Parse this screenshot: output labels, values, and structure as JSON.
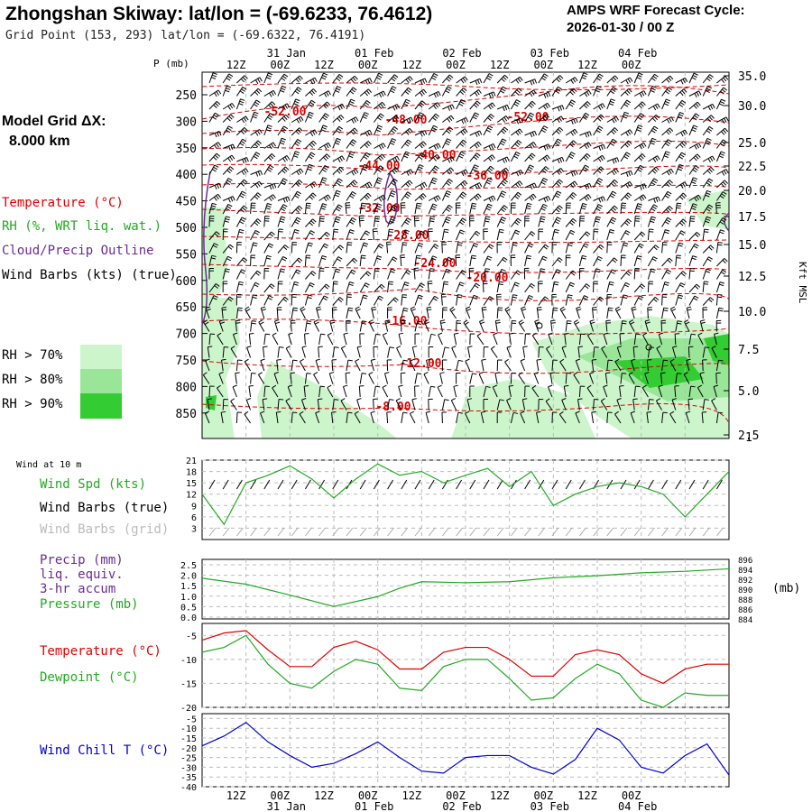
{
  "header": {
    "title": "Zhongshan Skiway:  lat/lon = (-69.6233, 76.4612)",
    "grid_point": "Grid Point (153, 293) lat/lon = (-69.6322, 76.4191)",
    "cycle_label": "AMPS WRF Forecast Cycle:",
    "cycle_value": "2026-01-30 / 00  Z"
  },
  "left_legend": {
    "model_grid_label": "Model Grid ΔX:",
    "model_grid_value": "8.000 km",
    "temperature": "Temperature (°C)",
    "rh": "RH (%, WRT liq. wat.)",
    "cloud": "Cloud/Precip Outline",
    "wind_barbs": "Wind Barbs (kts) (true)",
    "rh70": "RH > 70%",
    "rh80": "RH > 80%",
    "rh90": "RH > 90%",
    "wind_10m": "Wind at 10 m",
    "wind_spd": "Wind Spd (kts)",
    "wind_barbs_true": "Wind Barbs (true)",
    "wind_barbs_grid": "Wind Barbs (grid)",
    "precip1": "Precip (mm)",
    "precip2": "liq. equiv.",
    "precip3": "3-hr accum",
    "pressure": "Pressure (mb)",
    "temp2": "Temperature (°C)",
    "dewpoint": "Dewpoint (°C)",
    "windchill": "Wind Chill T (°C)"
  },
  "colors": {
    "temperature": "#dd0000",
    "rh_green_text": "#22aa22",
    "cloud": "#6a2c91",
    "rh70": "#ccf5cc",
    "rh80": "#99e699",
    "rh90": "#33cc33",
    "wind_chill": "#0000cc",
    "grid_barbs": "#aaaaaa"
  },
  "chart_data": [
    {
      "type": "heatmap",
      "title": "Vertical time-section",
      "ylabel": "P (mb)",
      "y2label": "Kft MSL",
      "p_ticks": [
        "250",
        "300",
        "350",
        "400",
        "450",
        "500",
        "550",
        "600",
        "650",
        "700",
        "750",
        "800",
        "850"
      ],
      "kft_ticks": [
        "35.0",
        "30.0",
        "25.0",
        "22.5",
        "20.0",
        "17.5",
        "15.0",
        "12.5",
        "10.0",
        "7.5",
        "5.0",
        "2.5"
      ],
      "kft_extra": "1",
      "time_top": [
        "12Z",
        "00Z",
        "12Z",
        "00Z",
        "12Z",
        "00Z",
        "12Z",
        "00Z",
        "12Z",
        "00Z"
      ],
      "date_top": [
        "31 Jan",
        "01 Feb",
        "02 Feb",
        "03 Feb",
        "04 Feb"
      ],
      "isotherm_labels": [
        "-52.00",
        "-48.00",
        "-52.00",
        "-40.00",
        "-44.00",
        "-36.00",
        "-32.00",
        "-28.00",
        "-24.00",
        "-20.00",
        "-16.00",
        "-12.00",
        "-8.00"
      ]
    },
    {
      "type": "line",
      "title": "Wind Spd (kts)",
      "yticks": [
        "21",
        "18",
        "15",
        "12",
        "9",
        "6",
        "3"
      ],
      "ylim": [
        0,
        21
      ],
      "x_hours": [
        0,
        6,
        12,
        18,
        24,
        30,
        36,
        42,
        48,
        54,
        60,
        66,
        72,
        78,
        84,
        90,
        96,
        102,
        108,
        114,
        120,
        126,
        132,
        138,
        144
      ],
      "values": [
        12,
        4,
        15,
        17,
        19.5,
        16,
        11,
        16,
        20,
        17,
        18,
        15,
        17,
        18.8,
        14,
        18,
        9,
        12,
        14,
        15,
        14,
        12,
        6,
        12,
        18
      ]
    },
    {
      "type": "line",
      "title": "Precip (mm) / Pressure (mb)",
      "yticks": [
        "2.5",
        "2.0",
        "1.5",
        "1.0",
        "0.5",
        "0.0"
      ],
      "y2ticks": [
        "896",
        "894",
        "892",
        "890",
        "888",
        "886",
        "884"
      ],
      "y2label": "(mb)",
      "ylim": [
        884,
        896
      ],
      "x_hours": [
        0,
        12,
        24,
        36,
        48,
        54,
        60,
        72,
        84,
        96,
        108,
        120,
        132,
        144
      ],
      "values": [
        892.2,
        891.0,
        888.8,
        886.5,
        888.5,
        890.2,
        891.5,
        891.3,
        891.5,
        892.3,
        892.7,
        893.3,
        893.6,
        894.1
      ]
    },
    {
      "type": "line",
      "title": "Temperature / Dewpoint (°C)",
      "yticks": [
        "-5",
        "-10",
        "-15",
        "-20"
      ],
      "ylim": [
        -20,
        -2.5
      ],
      "x_hours": [
        0,
        6,
        12,
        18,
        24,
        30,
        36,
        42,
        48,
        54,
        60,
        66,
        72,
        78,
        84,
        90,
        96,
        102,
        108,
        114,
        120,
        126,
        132,
        138,
        144
      ],
      "series": [
        {
          "name": "Temperature",
          "values": [
            -6,
            -4.5,
            -4,
            -8,
            -11.5,
            -11.5,
            -7.5,
            -6.2,
            -8,
            -12,
            -12,
            -8.5,
            -7.5,
            -7.5,
            -10,
            -13.5,
            -13.5,
            -9,
            -8,
            -9,
            -13,
            -15,
            -12,
            -11,
            -11
          ]
        },
        {
          "name": "Dewpoint",
          "values": [
            -8.5,
            -7.5,
            -5,
            -11,
            -15,
            -16,
            -12.5,
            -10,
            -11,
            -16,
            -16.5,
            -11.5,
            -10,
            -10,
            -14,
            -18.5,
            -18,
            -14,
            -11,
            -13,
            -18.5,
            -20,
            -17,
            -17.5,
            -17.5
          ]
        }
      ]
    },
    {
      "type": "line",
      "title": "Wind Chill T (°C)",
      "yticks": [
        "-5",
        "-10",
        "-15",
        "-20",
        "-25",
        "-30",
        "-35",
        "-40"
      ],
      "ylim": [
        -40,
        -2.5
      ],
      "x_hours": [
        0,
        6,
        12,
        18,
        24,
        30,
        36,
        42,
        48,
        54,
        60,
        66,
        72,
        78,
        84,
        90,
        96,
        102,
        108,
        114,
        120,
        126,
        132,
        138,
        144
      ],
      "values": [
        -19,
        -14,
        -7,
        -17,
        -24,
        -30,
        -28,
        -23,
        -17,
        -25,
        -32,
        -33,
        -25,
        -24,
        -24,
        -30,
        -33.5,
        -26,
        -10,
        -16,
        -30,
        -33,
        -24,
        -18,
        -34
      ]
    }
  ],
  "bottom_axis": {
    "times": [
      "12Z",
      "00Z",
      "12Z",
      "00Z",
      "12Z",
      "00Z",
      "12Z",
      "00Z",
      "12Z",
      "00Z"
    ],
    "dates": [
      "31 Jan",
      "01 Feb",
      "02 Feb",
      "03 Feb",
      "04 Feb"
    ]
  }
}
